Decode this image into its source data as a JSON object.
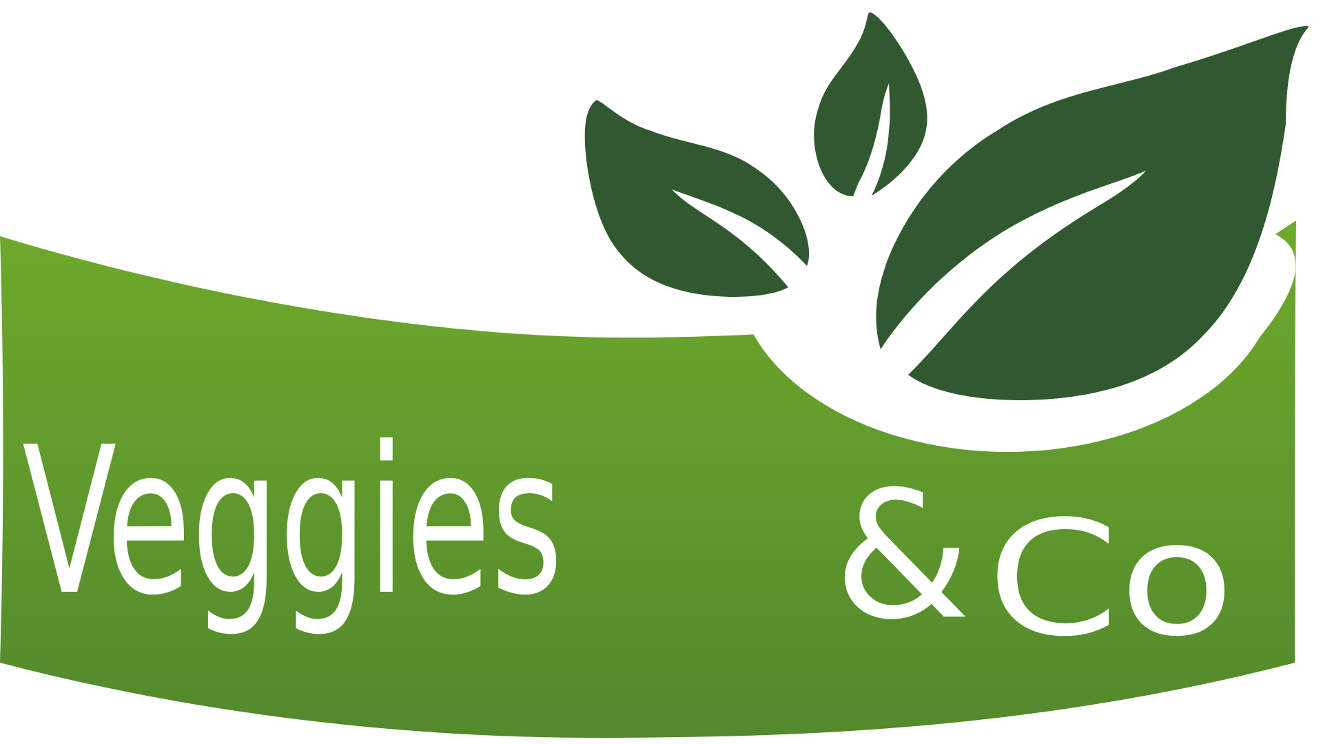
{
  "brand": {
    "name_part1": "Veggies",
    "ampersand": "&",
    "name_part2": "Co",
    "banner_color_top": "#6eaa2b",
    "banner_color_bottom": "#52892c",
    "leaf_color": "#31592f",
    "text_color": "#ffffff"
  },
  "icons": {
    "left_leaf": "leaf-icon",
    "top_leaf": "leaf-icon",
    "right_leaf": "leaf-icon"
  }
}
